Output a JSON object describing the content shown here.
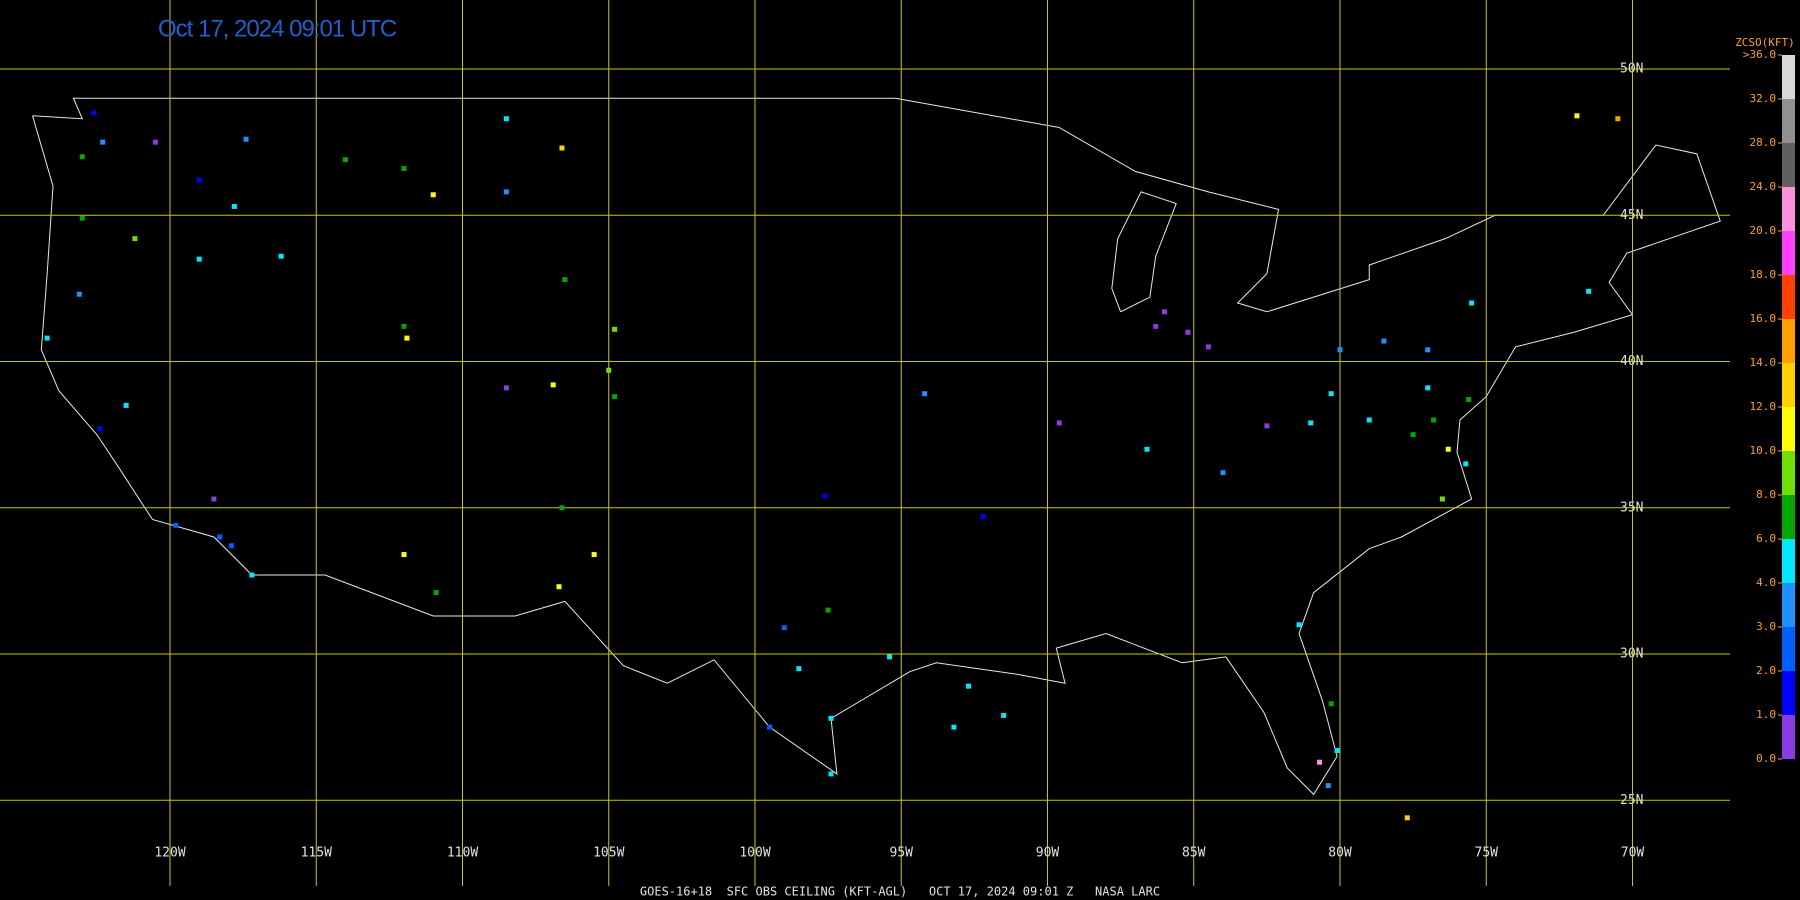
{
  "header": {
    "title": "Oct 17, 2024 09:01 UTC"
  },
  "footer": {
    "text": "GOES-16+18  SFC OBS CEILING (KFT-AGL)   OCT 17, 2024 09:01 Z   NASA LARC"
  },
  "map": {
    "lat_lines": [
      {
        "value": 50,
        "label": "50N"
      },
      {
        "value": 45,
        "label": "45N"
      },
      {
        "value": 40,
        "label": "40N"
      },
      {
        "value": 35,
        "label": "35N"
      },
      {
        "value": 30,
        "label": "30N"
      },
      {
        "value": 25,
        "label": "25N"
      }
    ],
    "lon_lines": [
      {
        "value": -120,
        "label": "120W"
      },
      {
        "value": -115,
        "label": "115W"
      },
      {
        "value": -110,
        "label": "110W"
      },
      {
        "value": -105,
        "label": "105W"
      },
      {
        "value": -100,
        "label": "100W"
      },
      {
        "value": -95,
        "label": "95W"
      },
      {
        "value": -90,
        "label": "90W"
      },
      {
        "value": -85,
        "label": "85W"
      },
      {
        "value": -80,
        "label": "80W"
      },
      {
        "value": -75,
        "label": "75W"
      },
      {
        "value": -70,
        "label": "70W"
      }
    ],
    "grid_color": "#c8c800",
    "stations": {
      "lon": [
        -122.3,
        -122.6,
        -123,
        -120.5,
        -117.4,
        -119,
        -123,
        -121.2,
        -119,
        -123.1,
        -117.8,
        -118.3,
        -117.9,
        -117.2,
        -119.8,
        -121.5,
        -124.2,
        -118.5,
        -122.4,
        -116.2,
        -112,
        -108.5,
        -111,
        -114,
        -106.6,
        -108.5,
        -111.9,
        -112,
        -105,
        -104.8,
        -106.9,
        -108.5,
        -104.8,
        -106.5,
        -112,
        -110.9,
        -106.6,
        -105.5,
        -106.7,
        -98.5,
        -97.4,
        -97.4,
        -99.5,
        -95.4,
        -93.2,
        -91.5,
        -97.5,
        -99,
        -97.6,
        -92.2,
        -94.2,
        -86.3,
        -86,
        -85.2,
        -89.6,
        -86.6,
        -84.5,
        -84,
        -82.5,
        -81,
        -80,
        -78.5,
        -77,
        -75.5,
        -71.5,
        -77,
        -76.8,
        -77.5,
        -76.3,
        -75.7,
        -76.5,
        -79,
        -80.3,
        -75.6,
        -81.4,
        -80.1,
        -80.3,
        -80.4,
        -77.7,
        -80.7,
        -71.9,
        -70.5,
        -92.7
      ],
      "lat": [
        47.5,
        48.5,
        47,
        47.5,
        47.6,
        46.2,
        44.9,
        44.2,
        43.5,
        42.3,
        45.3,
        34,
        33.7,
        32.7,
        34.4,
        38.5,
        40.8,
        35.3,
        37.7,
        43.6,
        46.6,
        45.8,
        45.7,
        46.9,
        47.3,
        48.3,
        40.8,
        41.2,
        39.7,
        38.8,
        39.2,
        39.1,
        41.1,
        42.8,
        33.4,
        32.1,
        35,
        33.4,
        32.3,
        29.5,
        27.8,
        25.9,
        27.5,
        29.9,
        27.5,
        27.9,
        31.5,
        30.9,
        35.4,
        34.7,
        38.9,
        41.2,
        41.7,
        41,
        37.9,
        37,
        40.5,
        36.2,
        37.8,
        37.9,
        40.4,
        40.7,
        40.4,
        42,
        42.4,
        39.1,
        38,
        37.5,
        37,
        36.5,
        35.3,
        38,
        38.9,
        38.7,
        31,
        26.7,
        28.3,
        25.5,
        24.4,
        26.3,
        48.4,
        48.3,
        28.9
      ],
      "ceiling": [
        3,
        1.5,
        6.5,
        0.5,
        3.5,
        1,
        6.5,
        9,
        4,
        3.5,
        4,
        2.5,
        2.5,
        4,
        2,
        5,
        4.5,
        0.5,
        1,
        4.5,
        7,
        3,
        11,
        7,
        13,
        4,
        10,
        7,
        8,
        7,
        10,
        0.5,
        9,
        7,
        10,
        7,
        7,
        10,
        10,
        4,
        4,
        4.5,
        2.5,
        4.5,
        4.5,
        4.5,
        7,
        2,
        1.5,
        1.5,
        3,
        0.5,
        0.5,
        0.5,
        0.5,
        4,
        0.5,
        3.5,
        0.5,
        4.5,
        3.5,
        3.5,
        3,
        4,
        4,
        4.5,
        7,
        7,
        10,
        4.5,
        8,
        4,
        4,
        7,
        4.5,
        4.5,
        7,
        3,
        12,
        22,
        11,
        14,
        4.5
      ]
    }
  },
  "colorbar": {
    "title": "ZCSO(KFT)",
    "ticks": [
      {
        "value": 0,
        "label": "0.0"
      },
      {
        "value": 1,
        "label": "1.0"
      },
      {
        "value": 2,
        "label": "2.0"
      },
      {
        "value": 3,
        "label": "3.0"
      },
      {
        "value": 4,
        "label": "4.0"
      },
      {
        "value": 6,
        "label": "6.0"
      },
      {
        "value": 8,
        "label": "8.0"
      },
      {
        "value": 10,
        "label": "10.0"
      },
      {
        "value": 12,
        "label": "12.0"
      },
      {
        "value": 14,
        "label": "14.0"
      },
      {
        "value": 16,
        "label": "16.0"
      },
      {
        "value": 18,
        "label": "18.0"
      },
      {
        "value": 20,
        "label": "20.0"
      },
      {
        "value": 24,
        "label": "24.0"
      },
      {
        "value": 28,
        "label": "28.0"
      },
      {
        "value": 32,
        "label": "32.0"
      },
      {
        "value": 36,
        "label": ">36.0"
      }
    ],
    "colors": [
      "#8a3be2",
      "#0000ff",
      "#0060ff",
      "#1e90ff",
      "#00e8ff",
      "#00a800",
      "#70e000",
      "#ffff00",
      "#ffd000",
      "#ffa000",
      "#ff4000",
      "#ff40ff",
      "#ff90e0",
      "#606060",
      "#909090",
      "#d8d8d8"
    ]
  }
}
